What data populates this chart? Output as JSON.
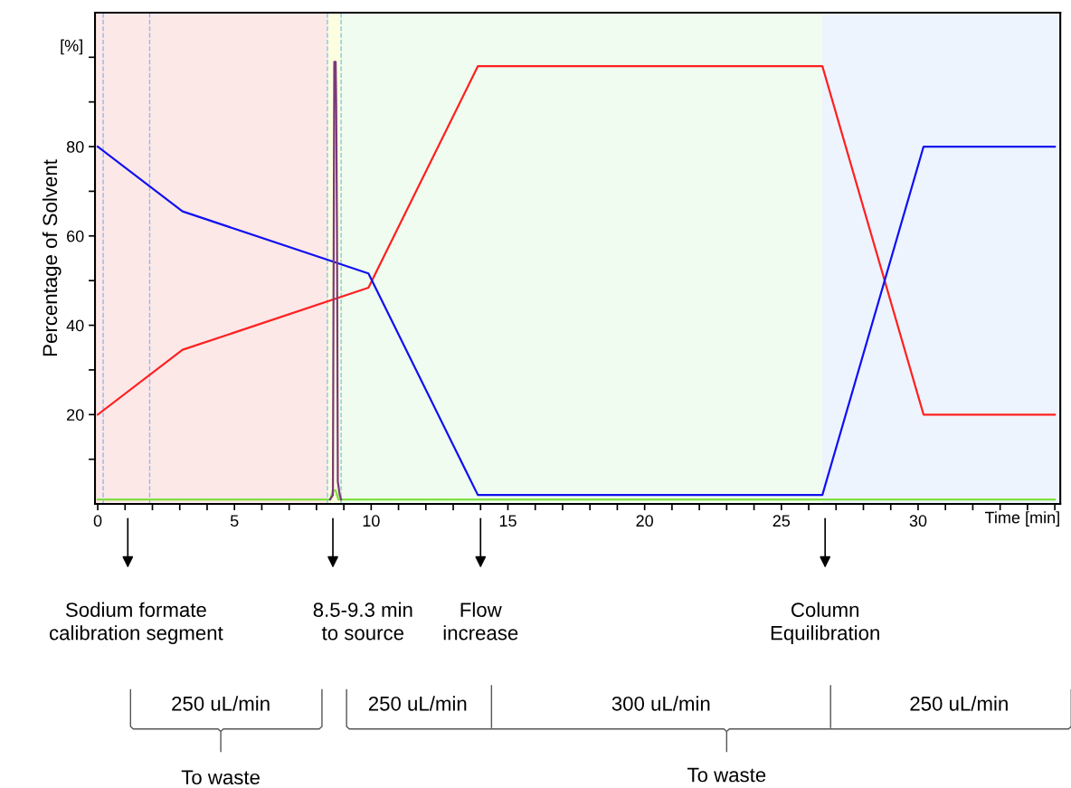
{
  "chart_data": {
    "type": "line",
    "xlabel": "Time [min]",
    "ylabel": "Percentage of Solvent",
    "xlim": [
      -0.1,
      35.2
    ],
    "ylim": [
      0,
      110
    ],
    "xticks": [
      0,
      {
        "value": 1,
        "label": null
      },
      {
        "value": 2,
        "label": null
      },
      {
        "value": 3,
        "label": null
      },
      {
        "value": 4,
        "label": null
      },
      5,
      {
        "value": 6,
        "label": null
      },
      {
        "value": 7,
        "label": null
      },
      {
        "value": 8,
        "label": null
      },
      {
        "value": 9,
        "label": null
      },
      10,
      {
        "value": 11,
        "label": null
      },
      {
        "value": 12,
        "label": null
      },
      {
        "value": 13,
        "label": null
      },
      {
        "value": 14,
        "label": null
      },
      15,
      {
        "value": 16,
        "label": null
      },
      {
        "value": 17,
        "label": null
      },
      {
        "value": 18,
        "label": null
      },
      {
        "value": 19,
        "label": null
      },
      20,
      {
        "value": 21,
        "label": null
      },
      {
        "value": 22,
        "label": null
      },
      {
        "value": 23,
        "label": null
      },
      {
        "value": 24,
        "label": null
      },
      25,
      {
        "value": 26,
        "label": null
      },
      {
        "value": 27,
        "label": null
      },
      {
        "value": 28,
        "label": null
      },
      {
        "value": 29,
        "label": null
      },
      30,
      {
        "value": 31,
        "label": null
      },
      {
        "value": 32,
        "label": null
      },
      {
        "value": 33,
        "label": null
      },
      {
        "value": 34,
        "label": null
      },
      {
        "value": 35,
        "label": null
      }
    ],
    "yticks": [
      {
        "value": 10,
        "label": null
      },
      20,
      {
        "value": 30,
        "label": null
      },
      40,
      {
        "value": 50,
        "label": null
      },
      60,
      {
        "value": 70,
        "label": null
      },
      80,
      {
        "value": 90,
        "label": null
      },
      {
        "value": 100,
        "label": null
      }
    ],
    "grid": false,
    "legend": false,
    "marker": "none",
    "line_style": "solid",
    "series": [
      {
        "color": "#ff2020",
        "x": [
          0,
          3.1,
          9.9,
          13.9,
          26.5,
          30.2,
          35.0
        ],
        "values": [
          20,
          34.5,
          48.4,
          98,
          98,
          20,
          20
        ]
      },
      {
        "color": "#1010f0",
        "x": [
          0,
          3.1,
          9.9,
          13.9,
          26.5,
          30.2,
          35.0
        ],
        "values": [
          80,
          65.5,
          51.6,
          2,
          2,
          80,
          80
        ]
      },
      {
        "color": "#80e040",
        "x": [
          0,
          8.5,
          8.6,
          8.7,
          8.8,
          35.0
        ],
        "values": [
          1,
          1,
          3,
          3,
          1,
          1
        ]
      },
      {
        "color": "#7a3a7a",
        "x": [
          8.5,
          8.6,
          8.65,
          8.7,
          8.72,
          8.75,
          8.78,
          8.85,
          8.9
        ],
        "values": [
          1,
          2,
          99,
          99,
          90,
          60,
          5,
          2,
          1
        ]
      }
    ],
    "bands": [
      {
        "axis": "x",
        "from": -0.1,
        "to": 8.4,
        "color": "#fde8e8"
      },
      {
        "axis": "x",
        "from": 8.4,
        "to": 8.9,
        "color": "#fdfde0"
      },
      {
        "axis": "x",
        "from": 8.9,
        "to": 26.5,
        "color": "#effcef"
      },
      {
        "axis": "x",
        "from": 26.5,
        "to": 35.2,
        "color": "#eef4fe"
      }
    ],
    "ref_lines": [
      {
        "axis": "x",
        "value": 0.2,
        "color": "#90b8f0",
        "line_style": "dashed"
      },
      {
        "axis": "x",
        "value": 1.9,
        "color": "#90b8f0",
        "line_style": "dashed"
      },
      {
        "axis": "x",
        "value": 8.4,
        "color": "#80c8e0",
        "line_style": "dashed"
      },
      {
        "axis": "x",
        "value": 8.9,
        "color": "#80c8e0",
        "line_style": "dashed"
      }
    ],
    "annotations": [
      "[%]",
      "Sodium formate\ncalibration segment",
      "8.5-9.3 min\nto source",
      "Flow\nincrease",
      "Column\nEquilibration",
      "250 uL/min",
      "250 uL/min",
      "300 uL/min",
      "250 uL/min",
      "To waste",
      "To waste"
    ]
  }
}
